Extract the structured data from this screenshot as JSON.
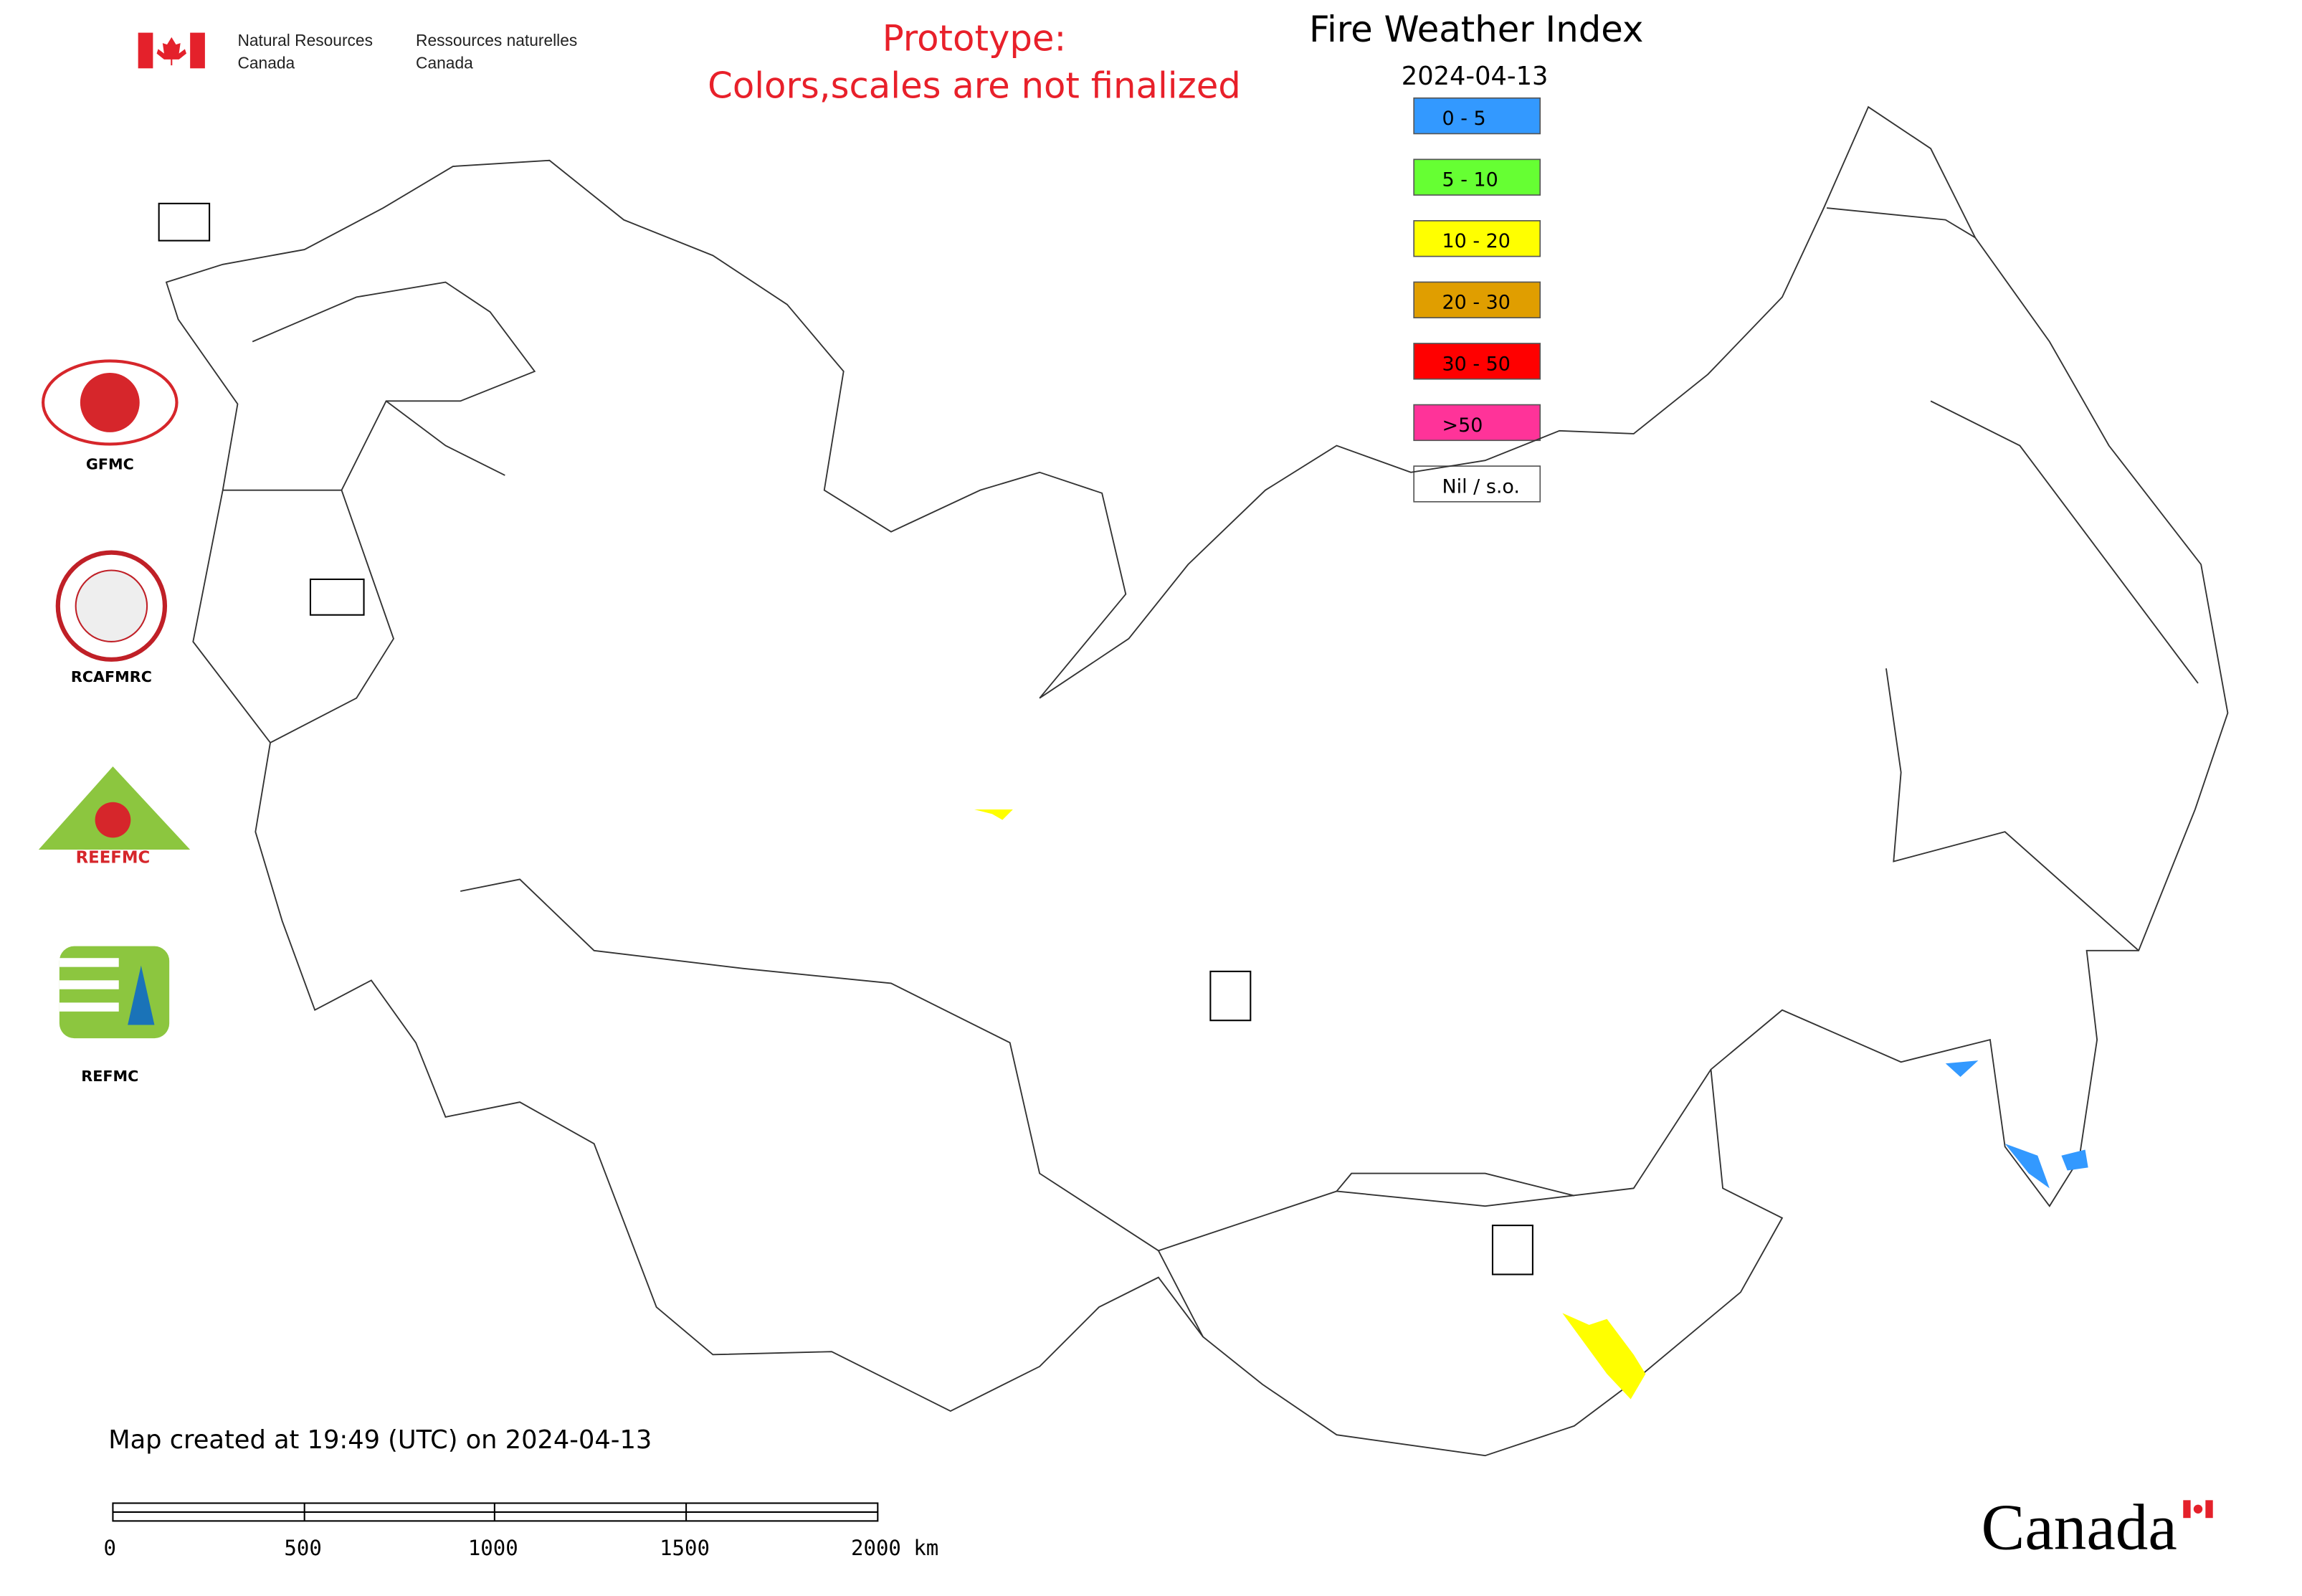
{
  "header": {
    "dept_en": [
      "Natural Resources",
      "Canada"
    ],
    "dept_fr": [
      "Ressources naturelles",
      "Canada"
    ]
  },
  "notice": [
    "Prototype:",
    "Colors,scales are not finalized"
  ],
  "map": {
    "title": "Fire Weather Index",
    "date": "2024-04-13",
    "legend": [
      {
        "label": "0 - 5",
        "color": "#3399ff"
      },
      {
        "label": "5 - 10",
        "color": "#66ff33"
      },
      {
        "label": "10 - 20",
        "color": "#ffff00"
      },
      {
        "label": "20 - 30",
        "color": "#e09e00"
      },
      {
        "label": "30 - 50",
        "color": "#ff0000"
      },
      {
        "label": ">50",
        "color": "#ff3399"
      },
      {
        "label": "Nil / s.o.",
        "color": "#ffffff"
      }
    ]
  },
  "logos": {
    "gfmc": "GFMC",
    "rcafmrc": "RCAFMRC",
    "reefmc": "REEFMC",
    "refmc": "REFMC"
  },
  "footer": {
    "created": "Map created at 19:49 (UTC) on 2024-04-13",
    "scale": [
      "0",
      "500",
      "1000",
      "1500",
      "2000 km"
    ],
    "wordmark": "Canada"
  }
}
